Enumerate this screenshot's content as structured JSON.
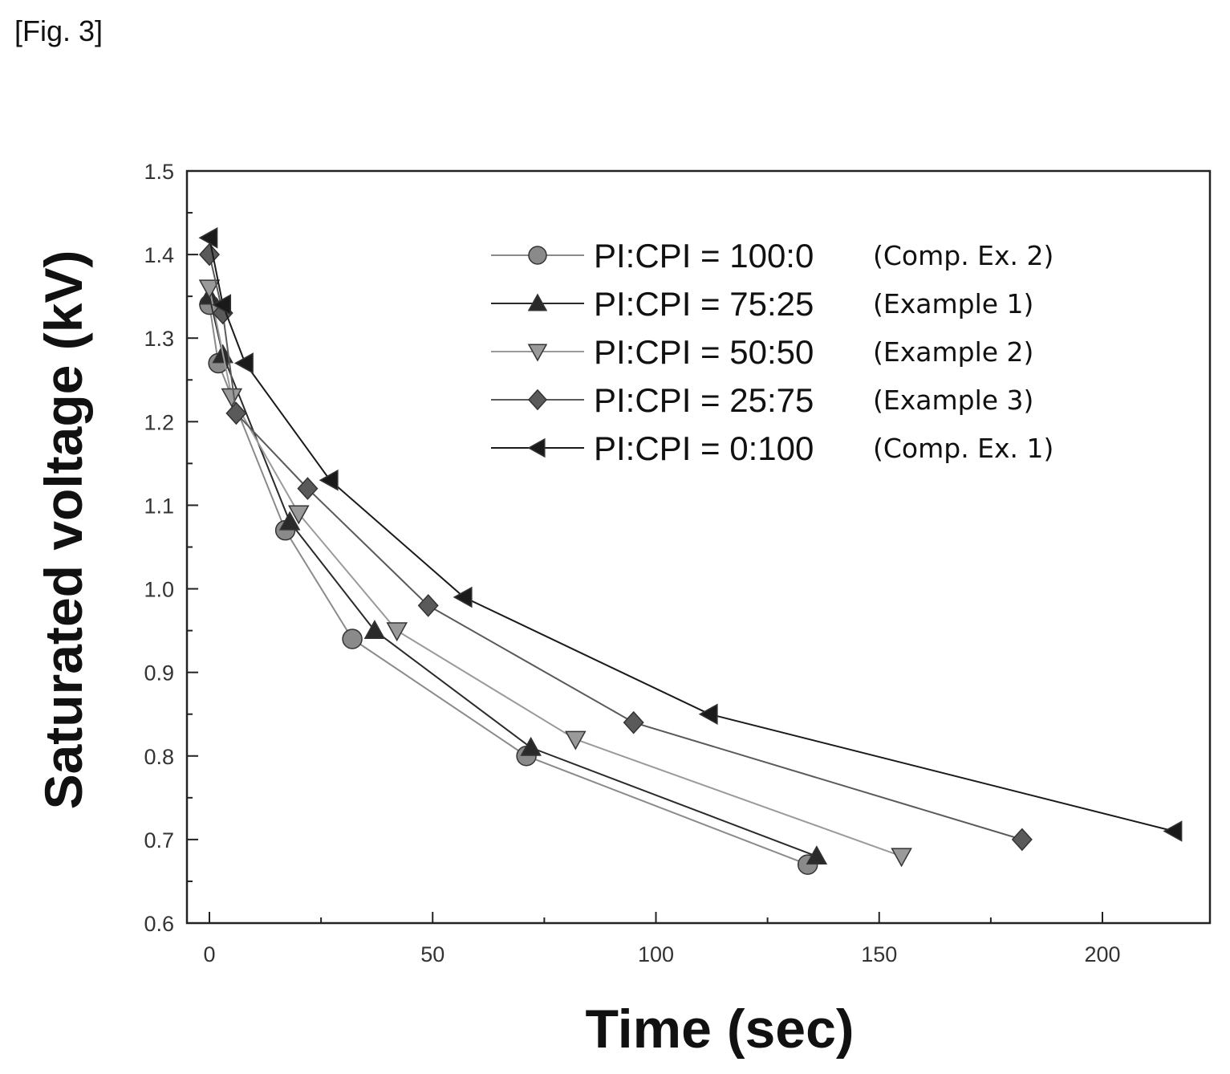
{
  "figure_label": "[Fig. 3]",
  "chart_data": {
    "type": "line",
    "title": "",
    "xlabel": "Time (sec)",
    "ylabel": "Saturated voltage (kV)",
    "xlim": [
      -5,
      225
    ],
    "ylim": [
      0.6,
      1.5
    ],
    "x_ticks": [
      0,
      50,
      100,
      150,
      200
    ],
    "y_ticks": [
      0.6,
      0.7,
      0.8,
      0.9,
      1.0,
      1.1,
      1.2,
      1.3,
      1.4,
      1.5
    ],
    "x_tick_labels": [
      "0",
      "50",
      "100",
      "150",
      "200"
    ],
    "y_tick_labels": [
      "0.6",
      "0.7",
      "0.8",
      "0.9",
      "1.0",
      "1.1",
      "1.2",
      "1.3",
      "1.4",
      "1.5"
    ],
    "grid": false,
    "legend_position": "top-right",
    "series": [
      {
        "name": "PI:CPI = 100:0",
        "note": "(Comp. Ex. 2)",
        "marker": "circle",
        "color": "#8a8a8a",
        "x": [
          0,
          2,
          17,
          32,
          71,
          134
        ],
        "y": [
          1.34,
          1.27,
          1.07,
          0.94,
          0.8,
          0.67
        ]
      },
      {
        "name": "PI:CPI = 75:25",
        "note": "(Example 1)",
        "marker": "triangle-up",
        "color": "#2a2a2a",
        "x": [
          0,
          3,
          18,
          37,
          72,
          136
        ],
        "y": [
          1.35,
          1.28,
          1.08,
          0.95,
          0.81,
          0.68
        ]
      },
      {
        "name": "PI:CPI = 50:50",
        "note": "(Example 2)",
        "marker": "triangle-down",
        "color": "#9a9a9a",
        "x": [
          0,
          5,
          20,
          42,
          82,
          155
        ],
        "y": [
          1.36,
          1.23,
          1.09,
          0.95,
          0.82,
          0.68
        ]
      },
      {
        "name": "PI:CPI = 25:75",
        "note": "(Example 3)",
        "marker": "diamond",
        "color": "#5a5a5a",
        "x": [
          0,
          3,
          6,
          22,
          49,
          95,
          182
        ],
        "y": [
          1.4,
          1.33,
          1.21,
          1.12,
          0.98,
          0.84,
          0.7
        ]
      },
      {
        "name": "PI:CPI = 0:100",
        "note": "(Comp. Ex. 1)",
        "marker": "triangle-left",
        "color": "#1a1a1a",
        "x": [
          0,
          3,
          8,
          27,
          57,
          112,
          216
        ],
        "y": [
          1.42,
          1.34,
          1.27,
          1.13,
          0.99,
          0.85,
          0.71
        ]
      }
    ]
  }
}
